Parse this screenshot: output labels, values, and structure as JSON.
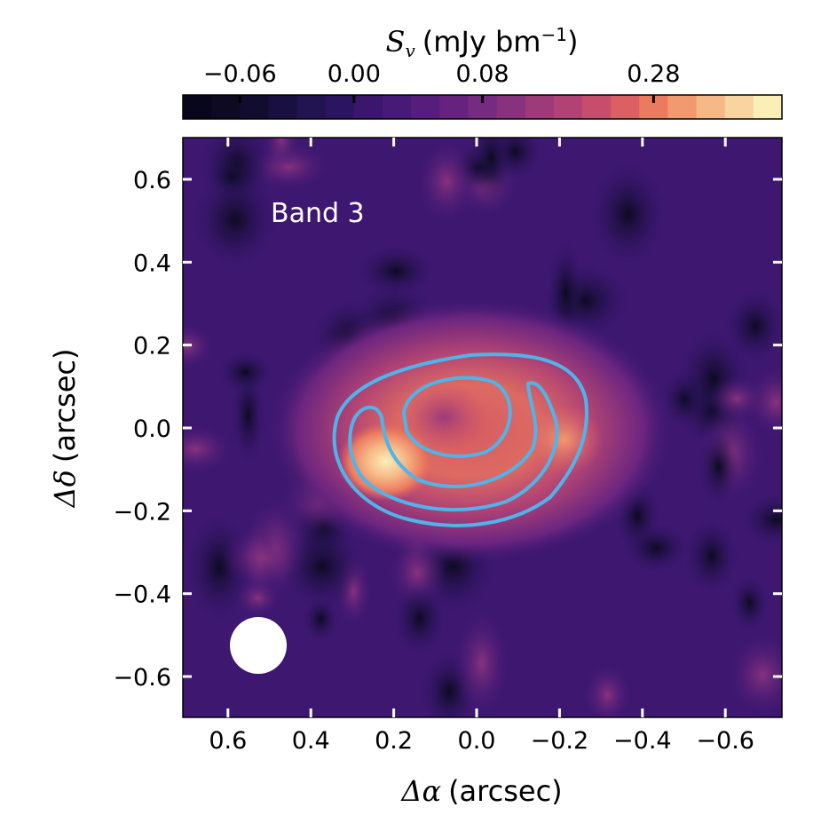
{
  "chart_data": {
    "type": "heatmap",
    "annotation": "Band 3",
    "xlabel": {
      "symbol": "Δα",
      "unit": "(arcsec)"
    },
    "ylabel": {
      "symbol": "Δδ",
      "unit": "(arcsec)"
    },
    "xlim": [
      0.71,
      -0.74
    ],
    "ylim": [
      -0.7,
      0.7
    ],
    "xticks": [
      0.6,
      0.4,
      0.2,
      0.0,
      -0.2,
      -0.4,
      -0.6
    ],
    "xtick_labels": [
      "0.6",
      "0.4",
      "0.2",
      "0.0",
      "−0.2",
      "−0.4",
      "−0.6"
    ],
    "yticks": [
      0.6,
      0.4,
      0.2,
      0.0,
      -0.2,
      -0.4,
      -0.6
    ],
    "ytick_labels": [
      "0.6",
      "0.4",
      "0.2",
      "0.0",
      "−0.2",
      "−0.4",
      "−0.6"
    ],
    "source": {
      "center": [
        0.05,
        -0.02
      ],
      "bright_peak": [
        0.22,
        -0.1
      ]
    },
    "contours": [
      "outer",
      "inner"
    ],
    "beam": {
      "center": [
        0.52,
        -0.53
      ]
    },
    "colorbar": {
      "label_symbol": "S",
      "label_sub": "v",
      "label_unit": "(mJy bm",
      "label_sup": "−1",
      "label_close": ")",
      "ticks": [
        -0.06,
        0.0,
        0.08,
        0.28
      ],
      "tick_labels": [
        "−0.06",
        "0.00",
        "0.08",
        "0.28"
      ],
      "tick_bins": [
        2,
        6,
        10.5,
        16.5
      ],
      "colors": [
        "#07061a",
        "#0d0a22",
        "#120d2e",
        "#1a1040",
        "#221450",
        "#2c1560",
        "#3a176d",
        "#481a78",
        "#561d7d",
        "#65227f",
        "#752b80",
        "#88327e",
        "#9c3a7a",
        "#b04374",
        "#c84d6c",
        "#dc5f63",
        "#ec7a5f",
        "#f29a6f",
        "#f6b886",
        "#f8d4a0",
        "#fbefb8"
      ]
    }
  }
}
